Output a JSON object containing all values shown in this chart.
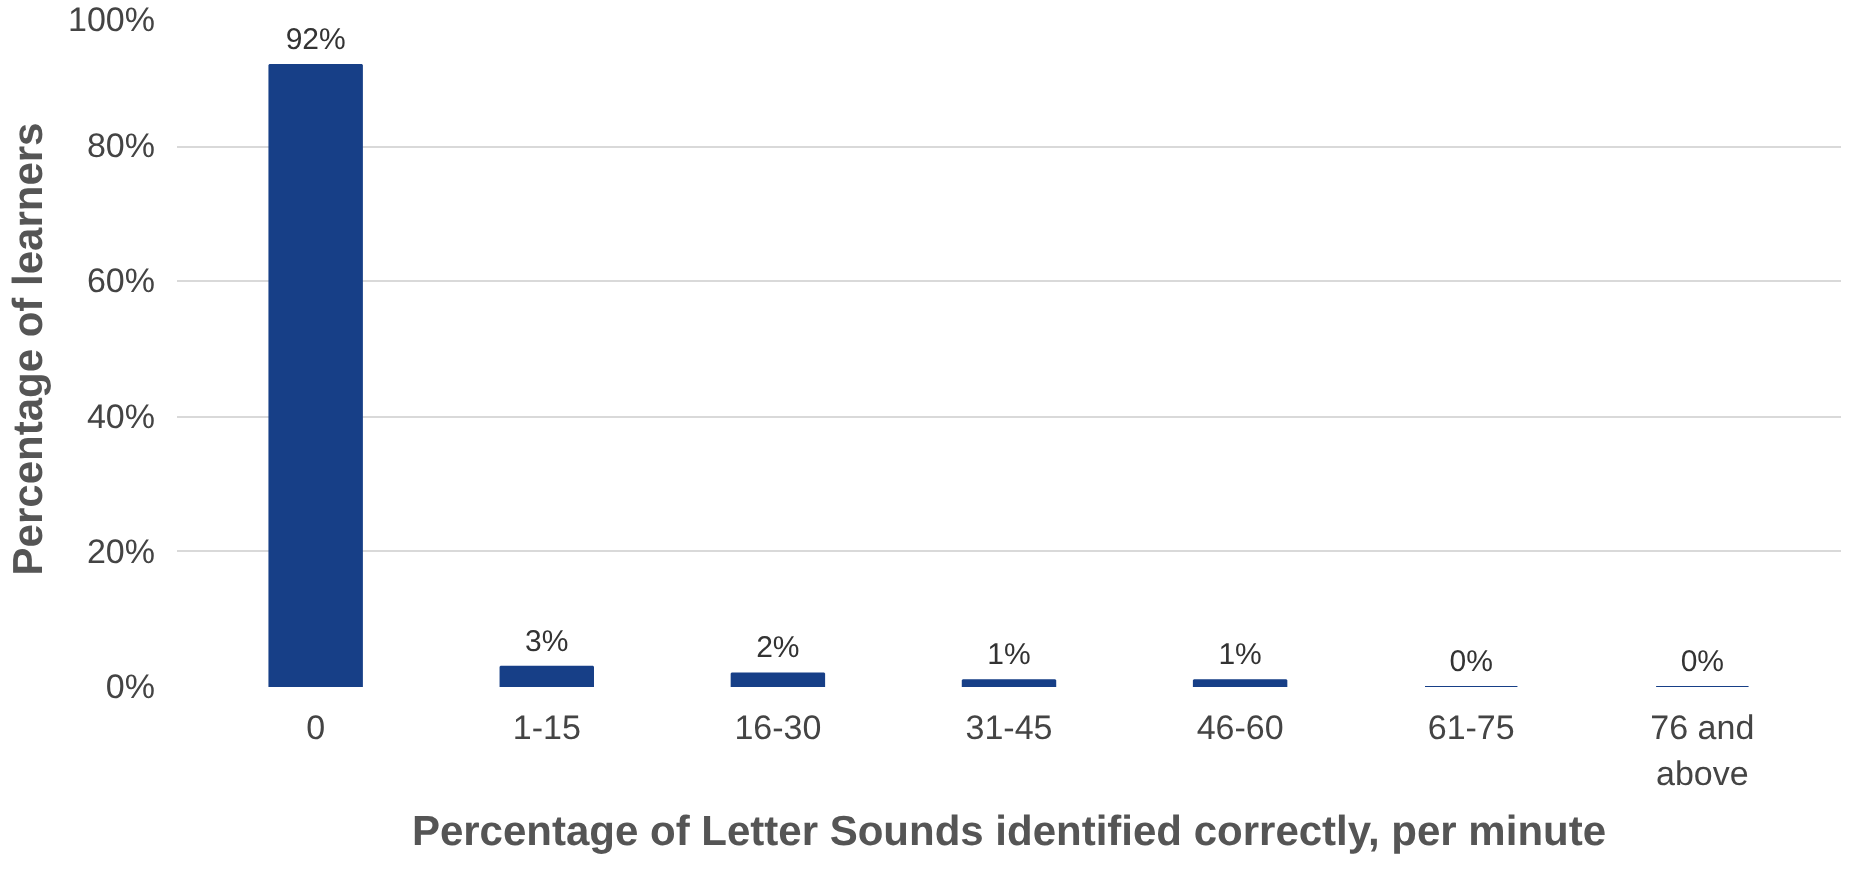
{
  "chart_data": {
    "type": "bar",
    "xlabel": "Percentage of Letter Sounds identified correctly, per minute",
    "ylabel": "Percentage of learners",
    "categories": [
      "0",
      "1-15",
      "16-30",
      "31-45",
      "46-60",
      "61-75",
      "76 and above"
    ],
    "values": [
      92,
      3,
      2,
      1,
      1,
      0,
      0
    ],
    "value_labels": [
      "92%",
      "3%",
      "2%",
      "1%",
      "1%",
      "0%",
      "0%"
    ],
    "color": "#173f87",
    "ylim": [
      0,
      100
    ],
    "yticks": [
      {
        "value": 0,
        "label": "0%"
      },
      {
        "value": 20,
        "label": "20%"
      },
      {
        "value": 40,
        "label": "40%"
      },
      {
        "value": 60,
        "label": "60%"
      },
      {
        "value": 80,
        "label": "80%"
      },
      {
        "value": 100,
        "label": "100%"
      }
    ],
    "grid": "y"
  }
}
